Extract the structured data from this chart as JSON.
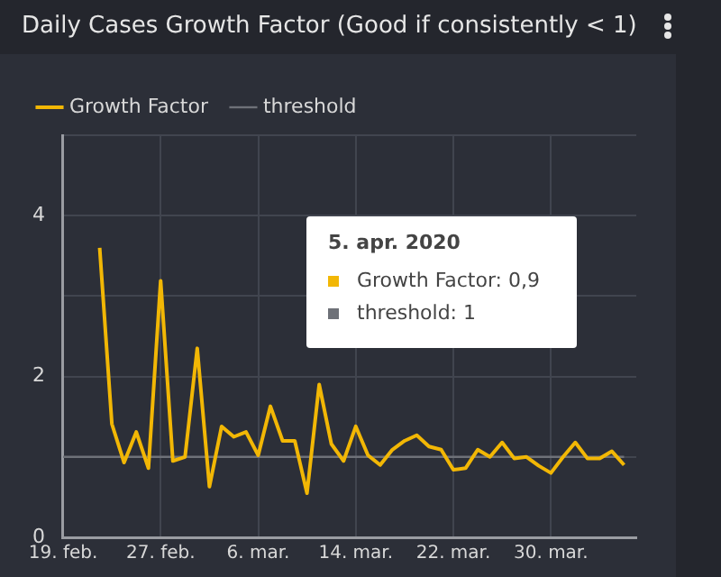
{
  "chart_data": {
    "type": "line",
    "title": "Daily Cases Growth Factor (Good if consistently < 1)",
    "x": [
      "2020-02-22",
      "2020-02-23",
      "2020-02-24",
      "2020-02-25",
      "2020-02-26",
      "2020-02-27",
      "2020-02-28",
      "2020-02-29",
      "2020-03-01",
      "2020-03-02",
      "2020-03-03",
      "2020-03-04",
      "2020-03-05",
      "2020-03-06",
      "2020-03-07",
      "2020-03-08",
      "2020-03-09",
      "2020-03-10",
      "2020-03-11",
      "2020-03-12",
      "2020-03-13",
      "2020-03-14",
      "2020-03-15",
      "2020-03-16",
      "2020-03-17",
      "2020-03-18",
      "2020-03-19",
      "2020-03-20",
      "2020-03-21",
      "2020-03-22",
      "2020-03-23",
      "2020-03-24",
      "2020-03-25",
      "2020-03-26",
      "2020-03-27",
      "2020-03-28",
      "2020-03-29",
      "2020-03-30",
      "2020-03-31",
      "2020-04-01",
      "2020-04-02",
      "2020-04-03",
      "2020-04-04",
      "2020-04-05"
    ],
    "series": [
      {
        "name": "Growth Factor",
        "color": "#f2b705",
        "values": [
          3.6,
          1.41,
          0.93,
          1.31,
          0.86,
          3.19,
          0.95,
          1.0,
          2.35,
          0.63,
          1.38,
          1.25,
          1.31,
          1.02,
          1.63,
          1.2,
          1.2,
          0.55,
          1.9,
          1.16,
          0.95,
          1.38,
          1.02,
          0.9,
          1.09,
          1.2,
          1.27,
          1.13,
          1.09,
          0.84,
          0.86,
          1.09,
          1.0,
          1.18,
          0.98,
          1.0,
          0.89,
          0.8,
          1.0,
          1.18,
          0.98,
          0.98,
          1.07,
          0.9
        ]
      },
      {
        "name": "threshold",
        "color": "#6e7178",
        "x": [
          "2020-02-19",
          "2020-04-05"
        ],
        "values": [
          1,
          1
        ]
      }
    ],
    "xlim": [
      "2020-02-19",
      "2020-04-06"
    ],
    "xticks": [
      {
        "value": "2020-02-19",
        "label": "19. feb."
      },
      {
        "value": "2020-02-27",
        "label": "27. feb."
      },
      {
        "value": "2020-03-06",
        "label": "6. mar."
      },
      {
        "value": "2020-03-14",
        "label": "14. mar."
      },
      {
        "value": "2020-03-22",
        "label": "22. mar."
      },
      {
        "value": "2020-03-30",
        "label": "30. mar."
      }
    ],
    "ylim": [
      0,
      5
    ],
    "yticks": [
      0,
      {
        "value": 1,
        "label": null
      },
      2,
      {
        "value": 3,
        "label": null
      },
      4,
      {
        "value": 5,
        "label": null
      }
    ],
    "grid": true,
    "legend": "top left",
    "marker": "none",
    "line_style": "solid",
    "annotations": [
      "5. apr. 2020",
      "Growth Factor: 0,9",
      "threshold: 1"
    ]
  }
}
